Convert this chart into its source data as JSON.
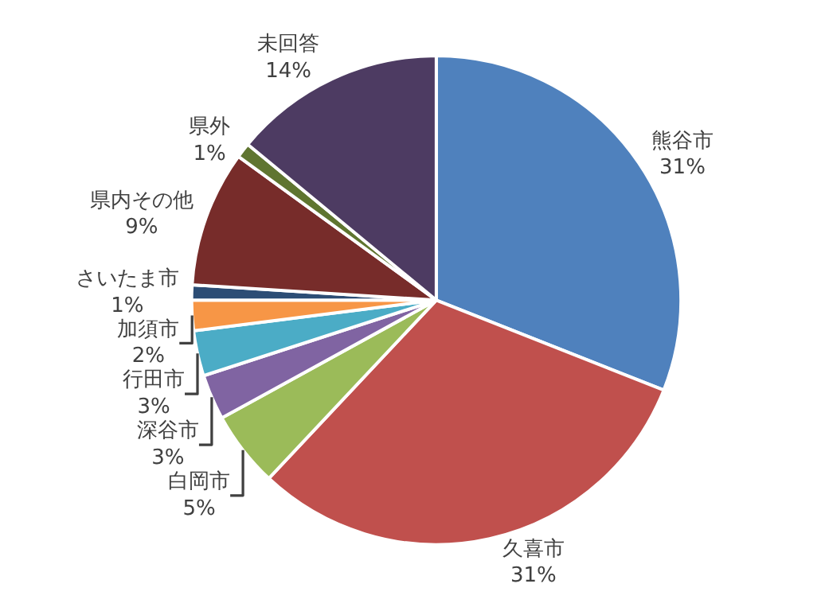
{
  "chart_data": {
    "type": "pie",
    "categories": [
      "熊谷市",
      "久喜市",
      "白岡市",
      "深谷市",
      "行田市",
      "加須市",
      "さいたま市",
      "県内その他",
      "県外",
      "未回答"
    ],
    "values": [
      31,
      31,
      5,
      3,
      3,
      2,
      1,
      9,
      1,
      14
    ],
    "value_labels": [
      "31%",
      "31%",
      "5%",
      "3%",
      "3%",
      "2%",
      "1%",
      "9%",
      "1%",
      "14%"
    ],
    "colors": [
      "#4f81bd",
      "#c0504d",
      "#9bbb59",
      "#8064a2",
      "#4bacc6",
      "#f79646",
      "#2c4d75",
      "#772c2a",
      "#5f7530",
      "#4d3b62"
    ],
    "legend": false
  }
}
